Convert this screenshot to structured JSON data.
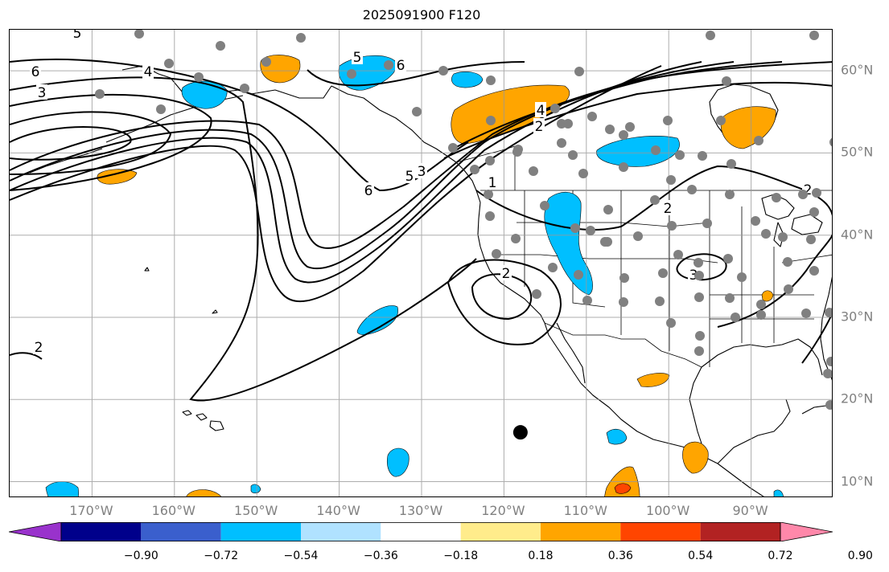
{
  "title": "2025091900 F120",
  "axes": {
    "lon_ticks": [
      "170°W",
      "160°W",
      "150°W",
      "140°W",
      "130°W",
      "120°W",
      "110°W",
      "100°W",
      "90°W"
    ],
    "lat_ticks": [
      "60°N",
      "50°N",
      "40°N",
      "30°N",
      "20°N",
      "10°N"
    ]
  },
  "contour_labels": [
    "5",
    "6",
    "3",
    "4",
    "5",
    "6",
    "6",
    "5",
    "3",
    "4",
    "2",
    "2",
    "2",
    "3",
    "2",
    "2",
    "1"
  ],
  "colorbar": {
    "tick_labels": [
      "−0.90",
      "−0.72",
      "−0.54",
      "−0.36",
      "−0.18",
      "0.18",
      "0.36",
      "0.54",
      "0.72",
      "0.90"
    ],
    "colors": [
      "#9932CC",
      "#00008B",
      "#3A5FCD",
      "#00BFFF",
      "#B0E2FF",
      "#FFFFFF",
      "#FFEC8B",
      "#FFA500",
      "#FF4500",
      "#B22222",
      "#FF88AA"
    ]
  },
  "map": {
    "projection": "PlateCarree",
    "extent_lon": [
      -180,
      -80
    ],
    "extent_lat": [
      8,
      65
    ],
    "grid": true,
    "fill_colors": {
      "negative": "#00BFFF",
      "positive": "#FFA500",
      "strong_positive": "#FF4500"
    },
    "marker": {
      "lon": -118,
      "lat": 16
    }
  }
}
